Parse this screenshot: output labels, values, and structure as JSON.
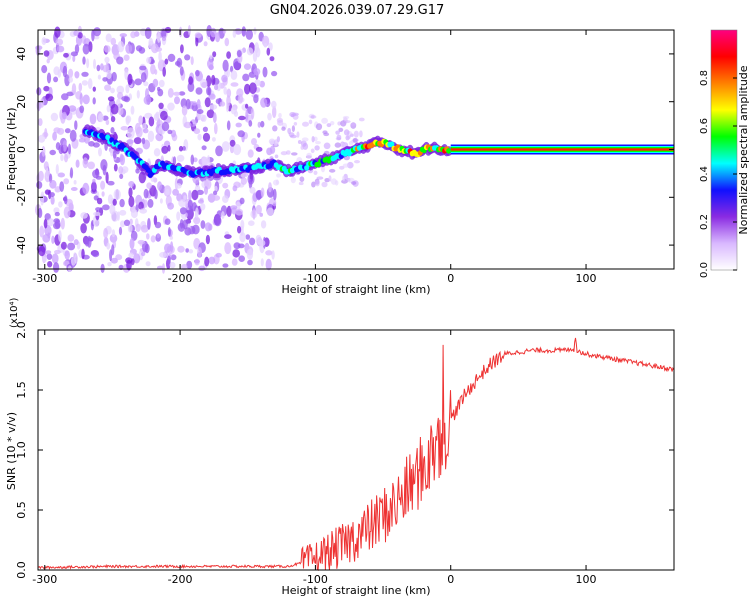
{
  "chart_data": [
    {
      "type": "heatmap",
      "title": "GN04.2026.039.07.29.G17",
      "xlabel": "Height of straight line (km)",
      "ylabel": "Frequency (Hz)",
      "xlim": [
        -305,
        165
      ],
      "ylim": [
        -50,
        50
      ],
      "xticks": [
        -300,
        -200,
        -100,
        0,
        100
      ],
      "yticks": [
        -40,
        -20,
        0,
        20,
        40
      ],
      "colorbar": {
        "label": "Normalized spectral amplitude",
        "range": [
          0,
          1
        ],
        "ticks": [
          "0.0",
          "0.2",
          "0.4",
          "0.6",
          "0.8"
        ],
        "colors": [
          "#ffffff",
          "#d9b8ff",
          "#8a2be2",
          "#1010ff",
          "#00ffff",
          "#00ff00",
          "#ffff00",
          "#ff8000",
          "#ff0000",
          "#ff0080"
        ]
      },
      "ridge": {
        "x": [
          -270,
          -255,
          -240,
          -230,
          -222,
          -215,
          -205,
          -190,
          -170,
          -150,
          -130,
          -120,
          -100,
          -85,
          -70,
          -60,
          -52,
          -45,
          -38,
          -30,
          -25,
          -20,
          -12,
          -5,
          0,
          165
        ],
        "y": [
          8,
          5,
          0,
          -5,
          -10,
          -6,
          -8,
          -10,
          -9,
          -8,
          -6,
          -9,
          -6,
          -3,
          0,
          2,
          3,
          2,
          0,
          -1,
          -2,
          0,
          1,
          0,
          0,
          0
        ]
      }
    },
    {
      "type": "line",
      "xlabel": "Height of straight line (km)",
      "ylabel": "SNR (10 * v/v)",
      "scale_note": "(x10⁴)",
      "xlim": [
        -305,
        165
      ],
      "ylim": [
        0,
        2.0
      ],
      "xticks": [
        -300,
        -200,
        -100,
        0,
        100
      ],
      "yticks": [
        "0.0",
        "0.5",
        "1.0",
        "1.5",
        "2.0"
      ],
      "color": "#ee3333",
      "series": [
        {
          "x": [
            -305,
            -250,
            -200,
            -150,
            -120,
            -110,
            -100,
            -90,
            -80,
            -70,
            -60,
            -50,
            -40,
            -30,
            -20,
            -10,
            0,
            10,
            20,
            30,
            40,
            60,
            80,
            90,
            100,
            120,
            140,
            165
          ],
          "y": [
            0.02,
            0.03,
            0.03,
            0.03,
            0.03,
            0.06,
            0.1,
            0.15,
            0.2,
            0.28,
            0.35,
            0.45,
            0.55,
            0.7,
            0.85,
            1.05,
            1.25,
            1.45,
            1.6,
            1.72,
            1.8,
            1.83,
            1.83,
            1.84,
            1.8,
            1.76,
            1.72,
            1.67
          ]
        }
      ]
    }
  ]
}
